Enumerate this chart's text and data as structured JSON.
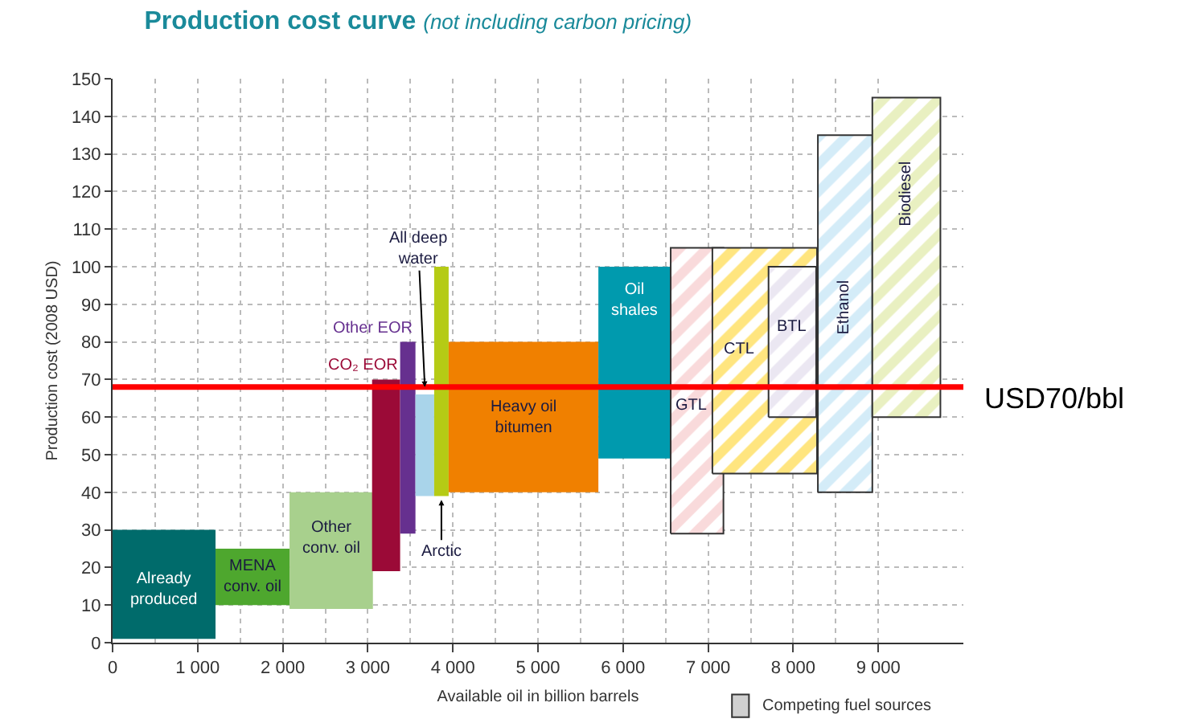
{
  "chart_data": {
    "type": "area",
    "title": "Production cost curve",
    "subtitle": "(not including carbon pricing)",
    "xlabel": "Available oil in billion barrels",
    "ylabel": "Production cost (2008 USD)",
    "series": [
      {
        "name": "Already produced",
        "color": "#006b6b",
        "x": [
          0,
          0,
          1210,
          1210
        ],
        "values": [
          1,
          30,
          30,
          1
        ]
      },
      {
        "name": "MENA conv. oil",
        "color": "#4ea72e",
        "x": [
          1210,
          1210,
          2080,
          2080
        ],
        "values": [
          10,
          25,
          25,
          10
        ]
      },
      {
        "name": "Other conv. oil",
        "color": "#a8d08d",
        "x": [
          2080,
          2080,
          3060,
          3060
        ],
        "values": [
          9,
          40,
          40,
          9
        ]
      },
      {
        "name": "CO₂ EOR",
        "color": "#9b0a37",
        "x": [
          3050,
          3050,
          3380,
          3380
        ],
        "values": [
          19,
          70,
          70,
          19
        ]
      },
      {
        "name": "Other EOR",
        "color": "#66308f",
        "x": [
          3380,
          3380,
          3560,
          3560
        ],
        "values": [
          29,
          80,
          80,
          29
        ]
      },
      {
        "name": "All deep water",
        "color": "#a9d4ea",
        "x": [
          3560,
          3560,
          3780,
          3780
        ],
        "values": [
          39,
          66,
          66,
          39
        ]
      },
      {
        "name": "Arctic",
        "color": "#b5cb15",
        "x": [
          3780,
          3780,
          3950,
          3950
        ],
        "values": [
          39,
          100,
          100,
          39
        ]
      },
      {
        "name": "Heavy oil bitumen",
        "color": "#f08000",
        "x": [
          3950,
          3950,
          5710,
          5710
        ],
        "values": [
          40,
          80,
          80,
          40
        ]
      },
      {
        "name": "Oil shales",
        "color": "#009aae",
        "x": [
          5710,
          5710,
          6560,
          6560
        ],
        "values": [
          49,
          100,
          100,
          49
        ]
      },
      {
        "name": "GTL",
        "color": "#f4b6b8",
        "x": [
          6560,
          6560,
          7180,
          7180
        ],
        "values": [
          29,
          105,
          105,
          29
        ]
      },
      {
        "name": "CTL",
        "color": "#ffcc00",
        "x": [
          7050,
          7050,
          8280,
          8280
        ],
        "values": [
          45,
          105,
          105,
          45
        ]
      },
      {
        "name": "BTL",
        "color": "#d7cfe6",
        "x": [
          7710,
          7710,
          8270,
          8270
        ],
        "values": [
          60,
          100,
          100,
          60
        ]
      },
      {
        "name": "Ethanol",
        "color": "#a9d9f2",
        "x": [
          8290,
          8290,
          8930,
          8930
        ],
        "values": [
          40,
          135,
          135,
          40
        ]
      },
      {
        "name": "Biodiesel",
        "color": "#d4e183",
        "x": [
          8930,
          8930,
          9730,
          9730
        ],
        "values": [
          60,
          145,
          145,
          60
        ]
      }
    ],
    "annotations": [
      "Competing fuel sources"
    ],
    "xlim": [
      0,
      10000
    ],
    "xticks": [
      0,
      {
        "value": 1000,
        "label": "1 000"
      },
      {
        "value": 2000,
        "label": "2 000"
      },
      {
        "value": 3000,
        "label": "3 000"
      },
      {
        "value": 4000,
        "label": "4 000"
      },
      {
        "value": 5000,
        "label": "5 000"
      },
      {
        "value": 6000,
        "label": "6 000"
      },
      {
        "value": 7000,
        "label": "7 000"
      },
      {
        "value": 8000,
        "label": "8 000"
      },
      {
        "value": 9000,
        "label": "9 000"
      }
    ],
    "ylim": [
      0,
      150
    ],
    "yticks": [
      0,
      10,
      20,
      30,
      40,
      50,
      60,
      70,
      80,
      90,
      100,
      110,
      120,
      130,
      140,
      150
    ],
    "ref_lines": [
      {
        "axis": "y",
        "value": 68,
        "label": "USD70/bbl",
        "color": "#ff0000"
      }
    ],
    "grid": true
  }
}
